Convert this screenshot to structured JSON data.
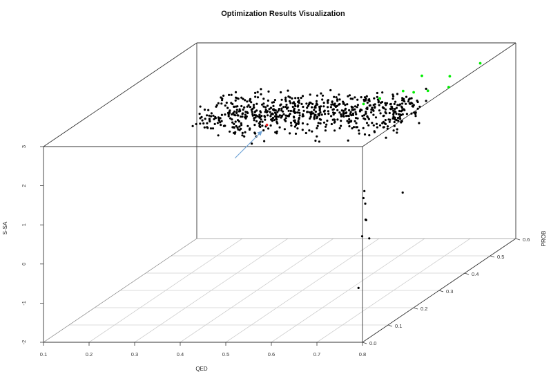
{
  "chart_data": {
    "type": "scatter",
    "title": "Optimization Results Visualization",
    "xlabel": "QED",
    "ylabel": "PROB",
    "zlabel": "S-SA",
    "xlim": [
      0.1,
      0.8
    ],
    "ylim": [
      0.0,
      0.6
    ],
    "zlim": [
      -2,
      3
    ],
    "x_ticks": [
      "0.1",
      "0.2",
      "0.3",
      "0.4",
      "0.5",
      "0.6",
      "0.7",
      "0.8"
    ],
    "y_ticks": [
      "0.0",
      "0.1",
      "0.2",
      "0.3",
      "0.4",
      "0.5",
      "0.6"
    ],
    "z_ticks": [
      "-2",
      "-1",
      "0",
      "1",
      "2",
      "3"
    ],
    "grid": "floor",
    "colors": {
      "main": "#000000",
      "optimal": "#00ee00",
      "selected": "#ee2222",
      "arrow": "#6fa3d6"
    },
    "series": [
      {
        "type": "cloud",
        "color": "#000000",
        "count": 700,
        "qed_range": [
          0.25,
          0.7
        ],
        "prob_range": [
          0.3,
          0.45
        ],
        "s_sa_range": [
          1.0,
          2.5
        ],
        "note": "dense black points"
      },
      {
        "color": "#000000",
        "points": [
          [
            0.75,
            0.1,
            1.1
          ],
          [
            0.78,
            0.05,
            0.9
          ],
          [
            0.79,
            0.03,
            1.0
          ],
          [
            0.72,
            0.15,
            1.2
          ],
          [
            0.69,
            0.2,
            0.8
          ],
          [
            0.74,
            0.12,
            0.6
          ],
          [
            0.78,
            0.02,
            -0.7
          ],
          [
            0.76,
            0.07,
            0.4
          ],
          [
            0.77,
            0.08,
            0.3
          ],
          [
            0.72,
            0.3,
            0.5
          ]
        ]
      },
      {
        "color": "#00ee00",
        "points": [
          [
            0.55,
            0.45,
            2.1
          ],
          [
            0.58,
            0.46,
            2.2
          ],
          [
            0.62,
            0.48,
            2.3
          ],
          [
            0.65,
            0.5,
            2.6
          ],
          [
            0.68,
            0.47,
            2.35
          ],
          [
            0.7,
            0.52,
            2.5
          ],
          [
            0.72,
            0.48,
            2.4
          ],
          [
            0.75,
            0.55,
            2.7
          ],
          [
            0.66,
            0.45,
            2.4
          ]
        ]
      },
      {
        "color": "#ee2222",
        "points": [
          [
            0.45,
            0.25,
            2.45
          ]
        ]
      }
    ],
    "annotations": [
      {
        "type": "arrow",
        "from_xyz": [
          0.38,
          0.25,
          1.6
        ],
        "to_xyz": [
          0.44,
          0.25,
          2.3
        ],
        "color": "#6fa3d6"
      }
    ]
  }
}
